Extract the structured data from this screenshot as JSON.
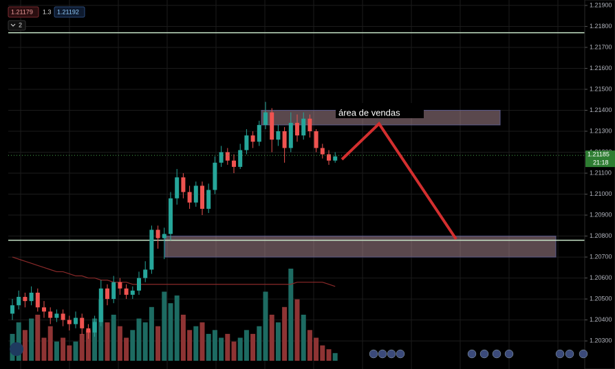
{
  "toolbar": {
    "bid": "1.21179",
    "spread": "1.3",
    "ask": "1.21192",
    "indicators": "2"
  },
  "chart_data": {
    "type": "candlestick",
    "open": [
      1.2043,
      1.2047,
      1.2051,
      1.2049,
      1.2053,
      1.2046,
      1.2044,
      1.2041,
      1.2043,
      1.204,
      1.2038,
      1.2041,
      1.2036,
      1.2034,
      1.2039,
      1.2055,
      1.205,
      1.2058,
      1.2055,
      1.2052,
      1.2054,
      1.206,
      1.2064,
      1.2083,
      1.2079,
      1.2081,
      1.2098,
      1.2108,
      1.2101,
      1.2096,
      1.2104,
      1.2093,
      1.2102,
      1.2115,
      1.212,
      1.2116,
      1.2113,
      1.2121,
      1.2128,
      1.2125,
      1.2133,
      1.2139,
      1.2126,
      1.213,
      1.2122,
      1.2134,
      1.2128,
      1.2136,
      1.213,
      1.2122,
      1.2119,
      1.2116
    ],
    "high": [
      1.205,
      1.2054,
      1.2053,
      1.2056,
      1.2055,
      1.2049,
      1.2046,
      1.2045,
      1.2045,
      1.2042,
      1.2044,
      1.2043,
      1.2038,
      1.2042,
      1.2059,
      1.2057,
      1.2061,
      1.206,
      1.2057,
      1.2056,
      1.2063,
      1.2068,
      1.2085,
      1.2085,
      1.2084,
      1.2101,
      1.2112,
      1.211,
      1.2104,
      1.2106,
      1.2106,
      1.2105,
      1.2118,
      1.2123,
      1.2122,
      1.2119,
      1.2124,
      1.2131,
      1.213,
      1.2135,
      1.2144,
      1.2141,
      1.2133,
      1.2132,
      1.2139,
      1.2138,
      1.2139,
      1.2138,
      1.2131,
      1.2124,
      1.2121,
      1.212
    ],
    "low": [
      1.204,
      1.2045,
      1.2046,
      1.2047,
      1.2044,
      1.2041,
      1.2038,
      1.2039,
      1.2037,
      1.2035,
      1.2036,
      1.2033,
      1.2031,
      1.2032,
      1.2037,
      1.2047,
      1.2048,
      1.2052,
      1.205,
      1.205,
      1.2052,
      1.2058,
      1.2062,
      1.2074,
      1.2069,
      1.2078,
      1.2095,
      1.2098,
      1.2093,
      1.2094,
      1.209,
      1.2091,
      1.21,
      1.2113,
      1.2114,
      1.211,
      1.2112,
      1.2119,
      1.2122,
      1.2123,
      1.2131,
      1.212,
      1.2123,
      1.2115,
      1.212,
      1.2125,
      1.2126,
      1.2127,
      1.212,
      1.2117,
      1.2114,
      1.2115
    ],
    "close": [
      1.2047,
      1.2051,
      1.2049,
      1.2053,
      1.2046,
      1.2044,
      1.2041,
      1.2043,
      1.204,
      1.2038,
      1.2041,
      1.2036,
      1.2034,
      1.2039,
      1.2055,
      1.205,
      1.2058,
      1.2055,
      1.2052,
      1.2054,
      1.206,
      1.2064,
      1.2083,
      1.2079,
      1.2081,
      1.2098,
      1.2108,
      1.2101,
      1.2096,
      1.2104,
      1.2093,
      1.2102,
      1.2115,
      1.212,
      1.2116,
      1.2113,
      1.2121,
      1.2128,
      1.2125,
      1.2133,
      1.2139,
      1.2126,
      1.213,
      1.2122,
      1.2134,
      1.2128,
      1.2136,
      1.213,
      1.2122,
      1.2119,
      1.2116,
      1.2118
    ],
    "volume": [
      35,
      50,
      40,
      55,
      60,
      30,
      45,
      25,
      30,
      20,
      25,
      35,
      40,
      55,
      80,
      50,
      60,
      45,
      30,
      40,
      55,
      50,
      70,
      45,
      90,
      75,
      85,
      60,
      40,
      45,
      50,
      35,
      40,
      30,
      35,
      25,
      30,
      40,
      35,
      45,
      90,
      60,
      50,
      70,
      120,
      80,
      60,
      40,
      30,
      20,
      15,
      10
    ],
    "ma": [
      1.207,
      1.2069,
      1.2068,
      1.2067,
      1.2066,
      1.2065,
      1.2064,
      1.2063,
      1.2063,
      1.2062,
      1.2061,
      1.2061,
      1.206,
      1.206,
      1.2059,
      1.2059,
      1.2058,
      1.2058,
      1.2058,
      1.2057,
      1.2057,
      1.2057,
      1.2057,
      1.2057,
      1.2057,
      1.2057,
      1.2057,
      1.2057,
      1.2057,
      1.2057,
      1.2057,
      1.2057,
      1.2057,
      1.2057,
      1.2057,
      1.2057,
      1.2057,
      1.2057,
      1.2057,
      1.2057,
      1.2057,
      1.2057,
      1.2057,
      1.2057,
      1.2057,
      1.2058,
      1.2058,
      1.2058,
      1.2058,
      1.2058,
      1.2057,
      1.2056
    ],
    "up_color": "#26a69a",
    "down_color": "#ef5350",
    "ylim": [
      1.20166,
      1.21926
    ],
    "vlim": [
      0,
      470
    ],
    "yticks": [
      {
        "value": 1.203,
        "label": "1.20300"
      },
      {
        "value": 1.204,
        "label": "1.20400"
      },
      {
        "value": 1.205,
        "label": "1.20500"
      },
      {
        "value": 1.206,
        "label": "1.20600"
      },
      {
        "value": 1.207,
        "label": "1.20700"
      },
      {
        "value": 1.208,
        "label": "1.20800"
      },
      {
        "value": 1.209,
        "label": "1.20900"
      },
      {
        "value": 1.21,
        "label": "1.21000"
      },
      {
        "value": 1.211,
        "label": "1.21100"
      },
      {
        "value": 1.212,
        "label": "1.21200"
      },
      {
        "value": 1.213,
        "label": "1.21300"
      },
      {
        "value": 1.214,
        "label": "1.21400"
      },
      {
        "value": 1.215,
        "label": "1.21500"
      },
      {
        "value": 1.216,
        "label": "1.21600"
      },
      {
        "value": 1.217,
        "label": "1.21700"
      },
      {
        "value": 1.218,
        "label": "1.21800"
      },
      {
        "value": 1.219,
        "label": "1.21900"
      }
    ],
    "last_price": 1.21185,
    "countdown": "21:18",
    "levels": [
      1.2177,
      1.2078
    ],
    "zones": [
      {
        "top": 1.214,
        "bottom": 1.2133
      },
      {
        "top": 1.208,
        "bottom": 1.207
      }
    ],
    "annotation": "área de vendas"
  }
}
